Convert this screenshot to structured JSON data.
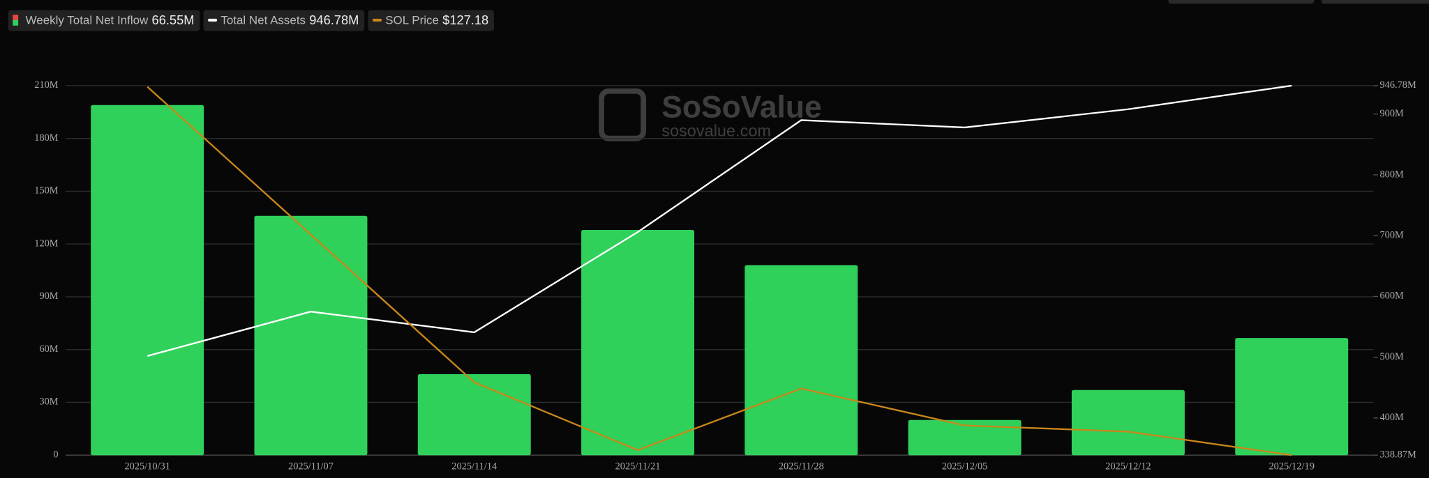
{
  "chart_data": {
    "type": "bar",
    "categories": [
      "2025/10/31",
      "2025/11/07",
      "2025/11/14",
      "2025/11/21",
      "2025/11/28",
      "2025/12/05",
      "2025/12/12",
      "2025/12/19"
    ],
    "series": [
      {
        "name": "Weekly Total Net Inflow",
        "latest": "66.55M",
        "color": "#2fd15a",
        "type": "bar",
        "values": [
          199,
          136,
          46,
          128,
          108,
          20,
          37,
          66.55
        ]
      },
      {
        "name": "Total Net Assets",
        "latest": "946.78M",
        "color": "#ffffff",
        "type": "line",
        "axis": "y2",
        "values": [
          502,
          575,
          541,
          706,
          890,
          878,
          908,
          946.78
        ]
      },
      {
        "name": "SOL Price",
        "latest": "$127.18",
        "color": "#c8871b",
        "type": "line",
        "axis": "y3",
        "values": [
          187,
          163,
          139,
          128,
          138,
          132,
          131,
          127.18
        ]
      }
    ],
    "ylim": [
      0,
      210
    ],
    "yticks": [
      0,
      {
        "value": 30,
        "label": "30M"
      },
      {
        "value": 60,
        "label": "60M"
      },
      {
        "value": 90,
        "label": "90M"
      },
      {
        "value": 120,
        "label": "120M"
      },
      {
        "value": 150,
        "label": "150M"
      },
      {
        "value": 180,
        "label": "180M"
      },
      {
        "value": 210,
        "label": "210M"
      }
    ],
    "y2lim": [
      338.87,
      946.78
    ],
    "y2ticks": [
      {
        "value": 338.87,
        "label": "338.87M"
      },
      {
        "value": 400,
        "label": "400M"
      },
      {
        "value": 500,
        "label": "500M"
      },
      {
        "value": 600,
        "label": "600M"
      },
      {
        "value": 700,
        "label": "700M"
      },
      {
        "value": 800,
        "label": "800M"
      },
      {
        "value": 900,
        "label": "900M"
      },
      {
        "value": 946.78,
        "label": "946.78M"
      }
    ],
    "y3lim": [
      127.18,
      187.18
    ],
    "grid": true,
    "watermark": {
      "brand": "SoSoValue",
      "site": "sosovalue.com"
    }
  }
}
